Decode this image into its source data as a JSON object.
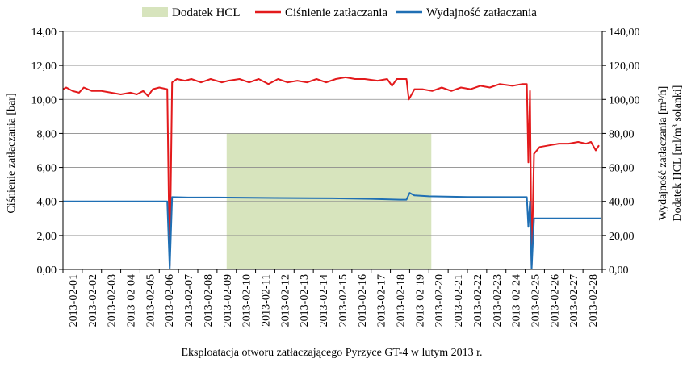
{
  "chart_data": {
    "type": "line",
    "title": "",
    "xlabel": "Eksploatacja otworu zatłaczającego Pyrzyce GT-4 w lutym 2013 r.",
    "ylabel_left": "Ciśnienie zatłaczania [bar]",
    "ylabel_right_line1": "Wydajność zatłaczania [m³/h]",
    "ylabel_right_line2": "Dodatek HCL [ml/m³ solanki]",
    "ylim_left": [
      0,
      14
    ],
    "ylim_right": [
      0,
      140
    ],
    "yticks_left": [
      "0,00",
      "2,00",
      "4,00",
      "6,00",
      "8,00",
      "10,00",
      "12,00",
      "14,00"
    ],
    "yticks_right": [
      "0,00",
      "20,00",
      "40,00",
      "60,00",
      "80,00",
      "100,00",
      "120,00",
      "140,00"
    ],
    "xlim": [
      "2013-02-01",
      "2013-03-01"
    ],
    "categories": [
      "2013-02-01",
      "2013-02-02",
      "2013-02-03",
      "2013-02-04",
      "2013-02-05",
      "2013-02-06",
      "2013-02-07",
      "2013-02-08",
      "2013-02-09",
      "2013-02-10",
      "2013-02-11",
      "2013-02-12",
      "2013-02-13",
      "2013-02-14",
      "2013-02-15",
      "2013-02-16",
      "2013-02-17",
      "2013-02-18",
      "2013-02-19",
      "2013-02-20",
      "2013-02-21",
      "2013-02-22",
      "2013-02-23",
      "2013-02-24",
      "2013-02-25",
      "2013-02-26",
      "2013-02-27",
      "2013-02-28"
    ],
    "grid": true,
    "legend_position": "top",
    "series": [
      {
        "name": "Dodatek HCL",
        "kind": "area",
        "axis": "right",
        "color": "#d7e4bd",
        "x": [
          "2013-02-09 12:00",
          "2013-02-20 03:00"
        ],
        "value": 80
      },
      {
        "name": "Ciśnienie zatłaczania",
        "kind": "line",
        "axis": "left",
        "color": "#e31a1c",
        "points": [
          [
            "2013-02-01 00:00",
            10.6
          ],
          [
            "2013-02-01 04:00",
            10.7
          ],
          [
            "2013-02-01 12:00",
            10.5
          ],
          [
            "2013-02-01 20:00",
            10.4
          ],
          [
            "2013-02-02 02:00",
            10.7
          ],
          [
            "2013-02-02 12:00",
            10.5
          ],
          [
            "2013-02-03 00:00",
            10.5
          ],
          [
            "2013-02-03 12:00",
            10.4
          ],
          [
            "2013-02-04 00:00",
            10.3
          ],
          [
            "2013-02-04 12:00",
            10.4
          ],
          [
            "2013-02-04 20:00",
            10.3
          ],
          [
            "2013-02-05 04:00",
            10.5
          ],
          [
            "2013-02-05 10:00",
            10.2
          ],
          [
            "2013-02-05 16:00",
            10.6
          ],
          [
            "2013-02-06 00:00",
            10.7
          ],
          [
            "2013-02-06 10:00",
            10.6
          ],
          [
            "2013-02-06 13:00",
            0.2
          ],
          [
            "2013-02-06 16:00",
            11.0
          ],
          [
            "2013-02-06 22:00",
            11.2
          ],
          [
            "2013-02-07 08:00",
            11.1
          ],
          [
            "2013-02-07 16:00",
            11.2
          ],
          [
            "2013-02-08 04:00",
            11.0
          ],
          [
            "2013-02-08 16:00",
            11.2
          ],
          [
            "2013-02-09 06:00",
            11.0
          ],
          [
            "2013-02-09 14:00",
            11.1
          ],
          [
            "2013-02-10 04:00",
            11.2
          ],
          [
            "2013-02-10 16:00",
            11.0
          ],
          [
            "2013-02-11 04:00",
            11.2
          ],
          [
            "2013-02-11 16:00",
            10.9
          ],
          [
            "2013-02-12 04:00",
            11.2
          ],
          [
            "2013-02-12 16:00",
            11.0
          ],
          [
            "2013-02-13 04:00",
            11.1
          ],
          [
            "2013-02-13 16:00",
            11.0
          ],
          [
            "2013-02-14 04:00",
            11.2
          ],
          [
            "2013-02-14 16:00",
            11.0
          ],
          [
            "2013-02-15 04:00",
            11.2
          ],
          [
            "2013-02-15 16:00",
            11.3
          ],
          [
            "2013-02-16 04:00",
            11.2
          ],
          [
            "2013-02-16 16:00",
            11.2
          ],
          [
            "2013-02-17 08:00",
            11.1
          ],
          [
            "2013-02-17 20:00",
            11.2
          ],
          [
            "2013-02-18 02:00",
            10.8
          ],
          [
            "2013-02-18 08:00",
            11.2
          ],
          [
            "2013-02-18 20:00",
            11.2
          ],
          [
            "2013-02-18 23:00",
            10.0
          ],
          [
            "2013-02-19 06:00",
            10.6
          ],
          [
            "2013-02-19 16:00",
            10.6
          ],
          [
            "2013-02-20 04:00",
            10.5
          ],
          [
            "2013-02-20 16:00",
            10.7
          ],
          [
            "2013-02-21 04:00",
            10.5
          ],
          [
            "2013-02-21 16:00",
            10.7
          ],
          [
            "2013-02-22 04:00",
            10.6
          ],
          [
            "2013-02-22 16:00",
            10.8
          ],
          [
            "2013-02-23 04:00",
            10.7
          ],
          [
            "2013-02-23 16:00",
            10.9
          ],
          [
            "2013-02-24 08:00",
            10.8
          ],
          [
            "2013-02-24 20:00",
            10.9
          ],
          [
            "2013-02-25 02:00",
            10.9
          ],
          [
            "2013-02-25 04:00",
            6.3
          ],
          [
            "2013-02-25 06:00",
            10.5
          ],
          [
            "2013-02-25 08:00",
            0.1
          ],
          [
            "2013-02-25 11:00",
            6.8
          ],
          [
            "2013-02-25 18:00",
            7.2
          ],
          [
            "2013-02-26 06:00",
            7.3
          ],
          [
            "2013-02-26 18:00",
            7.4
          ],
          [
            "2013-02-27 06:00",
            7.4
          ],
          [
            "2013-02-27 18:00",
            7.5
          ],
          [
            "2013-02-28 04:00",
            7.4
          ],
          [
            "2013-02-28 10:00",
            7.5
          ],
          [
            "2013-02-28 16:00",
            7.0
          ],
          [
            "2013-02-28 20:00",
            7.3
          ]
        ]
      },
      {
        "name": "Wydajność zatłaczania",
        "kind": "line",
        "axis": "right",
        "color": "#1f6fb4",
        "points": [
          [
            "2013-02-01 00:00",
            40.0
          ],
          [
            "2013-02-06 10:00",
            40.0
          ],
          [
            "2013-02-06 13:00",
            0.3
          ],
          [
            "2013-02-06 16:00",
            42.5
          ],
          [
            "2013-02-07 12:00",
            42.3
          ],
          [
            "2013-02-09 00:00",
            42.3
          ],
          [
            "2013-02-12 00:00",
            42.0
          ],
          [
            "2013-02-15 00:00",
            41.8
          ],
          [
            "2013-02-17 00:00",
            41.5
          ],
          [
            "2013-02-18 12:00",
            41.0
          ],
          [
            "2013-02-18 20:00",
            41.0
          ],
          [
            "2013-02-19 00:00",
            45.0
          ],
          [
            "2013-02-19 06:00",
            43.5
          ],
          [
            "2013-02-20 00:00",
            43.0
          ],
          [
            "2013-02-22 00:00",
            42.6
          ],
          [
            "2013-02-25 02:00",
            42.5
          ],
          [
            "2013-02-25 04:00",
            25.0
          ],
          [
            "2013-02-25 06:00",
            40.0
          ],
          [
            "2013-02-25 08:00",
            0.3
          ],
          [
            "2013-02-25 11:00",
            30.0
          ],
          [
            "2013-02-28 23:00",
            30.0
          ]
        ]
      }
    ]
  }
}
